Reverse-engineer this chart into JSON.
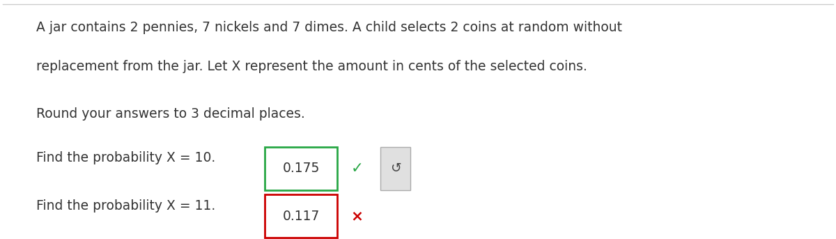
{
  "background_color": "#ffffff",
  "paragraph1_line1": "A jar contains 2 pennies, 7 nickels and 7 dimes. A child selects 2 coins at random without",
  "paragraph1_line2": "replacement from the jar. Let X represent the amount in cents of the selected coins.",
  "paragraph2": "Round your answers to 3 decimal places.",
  "question1_prefix": "Find the probability X = 10.",
  "question1_value": "0.175",
  "question1_box_color": "#28a745",
  "question1_check_color": "#28a745",
  "question2_prefix": "Find the probability X = 11.",
  "question2_value": "0.117",
  "question2_box_color": "#cc0000",
  "question2_x_color": "#cc0000",
  "text_color": "#333333",
  "font_size_main": 13.5,
  "fig_width": 12.0,
  "fig_height": 3.43,
  "top_border_color": "#cccccc"
}
